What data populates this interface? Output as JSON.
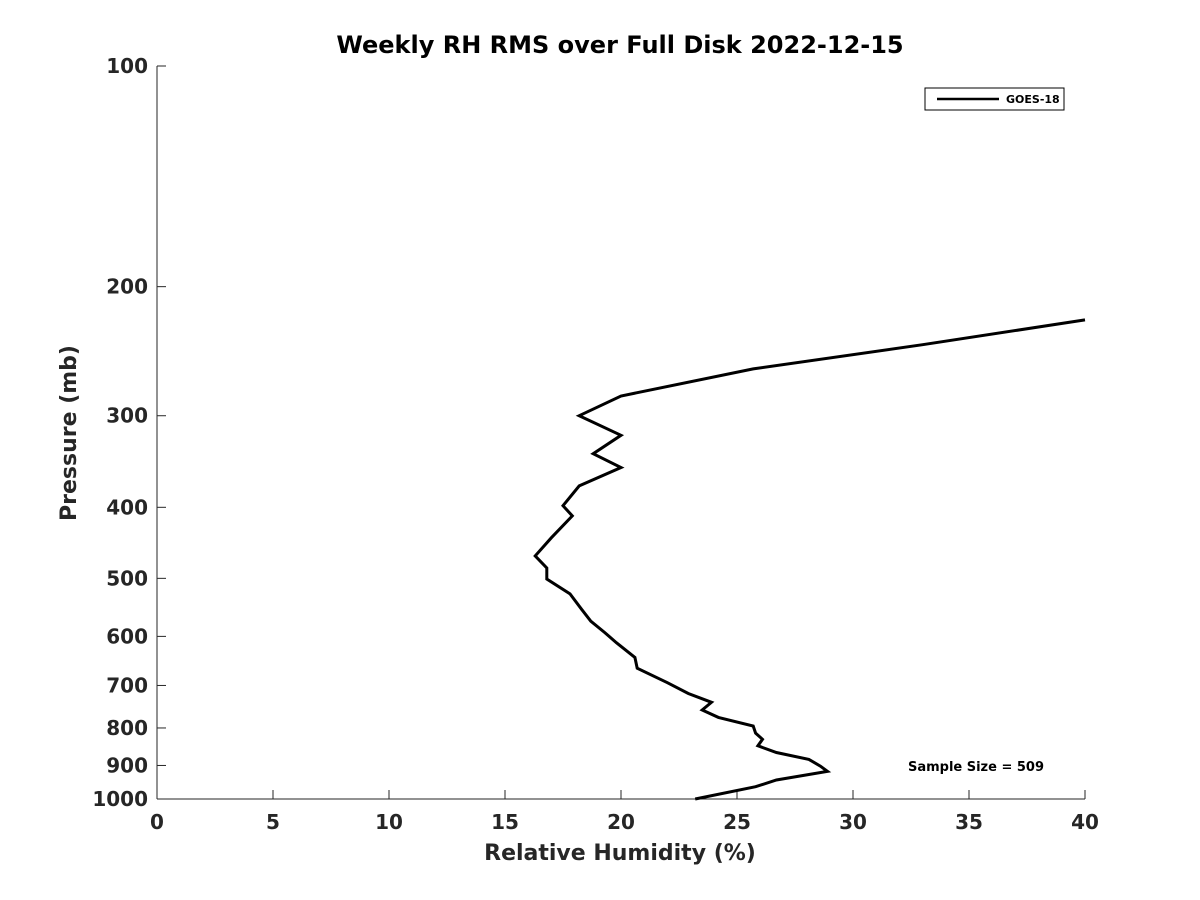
{
  "chart_data": {
    "type": "line",
    "title": "Weekly RH RMS over Full Disk 2022-12-15",
    "xlabel": "Relative Humidity (%)",
    "ylabel": "Pressure (mb)",
    "xlim": [
      0,
      40
    ],
    "ylim": [
      100,
      1000
    ],
    "y_scale": "log",
    "y_reversed": true,
    "grid": false,
    "x_ticks": [
      "0",
      "5",
      "10",
      "15",
      "20",
      "25",
      "30",
      "35",
      "40"
    ],
    "y_ticks": [
      "100",
      "200",
      "300",
      "400",
      "500",
      "600",
      "700",
      "800",
      "900",
      "1000"
    ],
    "legend": {
      "position": "top-right",
      "entries": [
        "GOES-18"
      ]
    },
    "annotation": "Sample Size = 509",
    "series": [
      {
        "name": "GOES-18",
        "color": "#000000",
        "points": [
          [
            23.2,
            1000
          ],
          [
            25.8,
            962
          ],
          [
            26.7,
            942
          ],
          [
            28.9,
            917
          ],
          [
            28.6,
            902
          ],
          [
            28.1,
            883
          ],
          [
            26.7,
            864
          ],
          [
            25.9,
            846
          ],
          [
            26.1,
            829
          ],
          [
            25.8,
            813
          ],
          [
            25.7,
            795
          ],
          [
            24.2,
            774
          ],
          [
            23.5,
            756
          ],
          [
            23.9,
            738
          ],
          [
            22.9,
            718
          ],
          [
            22.0,
            694
          ],
          [
            20.7,
            663
          ],
          [
            20.6,
            641
          ],
          [
            19.8,
            612
          ],
          [
            19.3,
            593
          ],
          [
            18.7,
            572
          ],
          [
            18.3,
            551
          ],
          [
            17.8,
            525
          ],
          [
            16.8,
            501
          ],
          [
            16.8,
            484
          ],
          [
            16.3,
            466
          ],
          [
            17.0,
            440
          ],
          [
            17.9,
            411
          ],
          [
            17.5,
            398
          ],
          [
            18.2,
            374
          ],
          [
            20.0,
            353
          ],
          [
            18.8,
            338
          ],
          [
            20.0,
            319
          ],
          [
            18.2,
            300
          ],
          [
            20.0,
            282
          ],
          [
            25.7,
            259
          ],
          [
            33.0,
            240
          ],
          [
            40.0,
            222
          ]
        ]
      }
    ]
  }
}
